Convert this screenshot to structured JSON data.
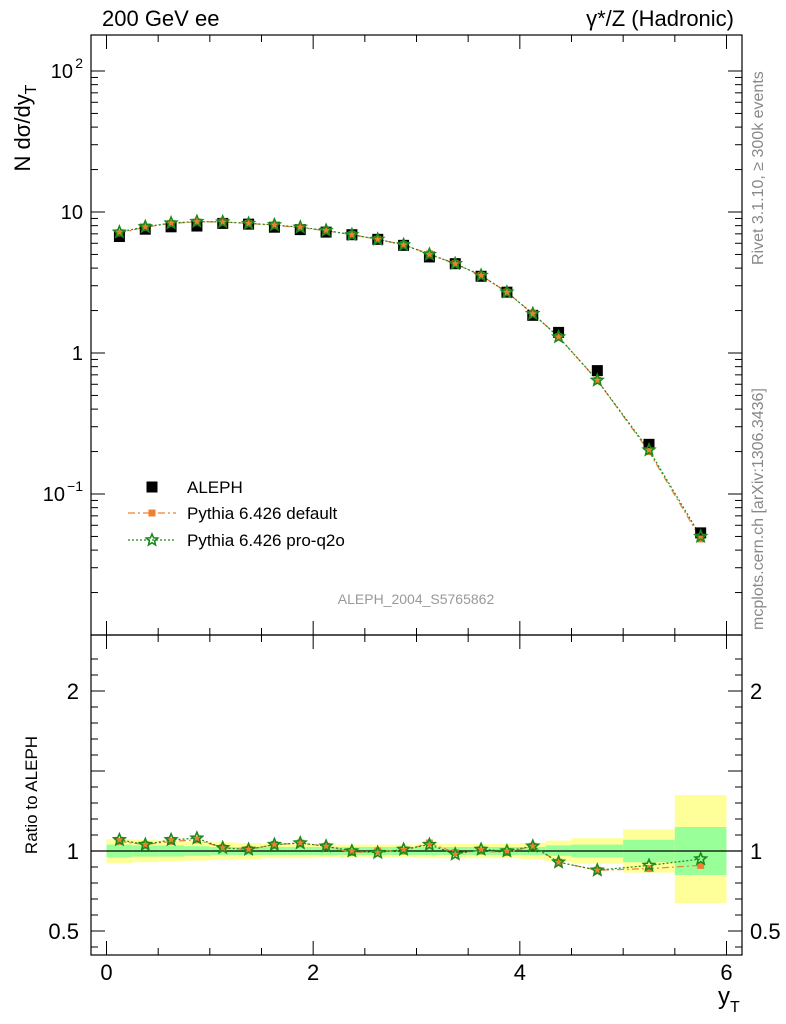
{
  "header": {
    "left": "200 GeV ee",
    "right": "γ*/Z (Hadronic)"
  },
  "side_labels": {
    "rivet": "Rivet 3.1.10, ≥ 300k events",
    "mcplots": "mcplots.cern.ch [arXiv:1306.3436]"
  },
  "chart_data": [
    {
      "type": "scatter",
      "panel": "main",
      "ylabel": "N dσ/dy_T",
      "yscale": "log",
      "ylim": [
        0.01,
        180
      ],
      "xlim": [
        -0.15,
        6.15
      ],
      "analysis_id": "ALEPH_2004_S5765862",
      "yticks": [
        {
          "value": 0.1,
          "label": "10",
          "exp": "−1"
        },
        {
          "value": 1,
          "label": "1",
          "exp": ""
        },
        {
          "value": 10,
          "label": "10",
          "exp": ""
        },
        {
          "value": 100,
          "label": "10",
          "exp": "2"
        }
      ],
      "x": [
        0.125,
        0.375,
        0.625,
        0.875,
        1.125,
        1.375,
        1.625,
        1.875,
        2.125,
        2.375,
        2.625,
        2.875,
        3.125,
        3.375,
        3.625,
        3.875,
        4.125,
        4.375,
        4.75,
        5.25,
        5.75
      ],
      "series": [
        {
          "name": "ALEPH",
          "marker": "square",
          "color": "#000000",
          "values": [
            6.7,
            7.55,
            7.85,
            7.95,
            8.3,
            8.2,
            7.8,
            7.5,
            7.2,
            6.9,
            6.4,
            5.8,
            4.8,
            4.3,
            3.5,
            2.7,
            1.85,
            1.4,
            0.75,
            0.225,
            0.053
          ]
        },
        {
          "name": "Pythia 6.426 default",
          "marker": "filled-square",
          "color": "#f08030",
          "values": [
            7.1,
            7.8,
            8.3,
            8.5,
            8.5,
            8.3,
            8.05,
            7.75,
            7.35,
            6.9,
            6.4,
            5.85,
            5.05,
            4.3,
            3.55,
            2.7,
            1.9,
            1.3,
            0.64,
            0.2,
            0.048
          ]
        },
        {
          "name": "Pythia 6.426 pro-q2o",
          "marker": "star",
          "color": "#1a8a1a",
          "values": [
            7.2,
            7.85,
            8.35,
            8.55,
            8.5,
            8.3,
            8.1,
            7.8,
            7.4,
            6.9,
            6.4,
            5.85,
            5.0,
            4.3,
            3.55,
            2.7,
            1.9,
            1.3,
            0.64,
            0.205,
            0.05
          ]
        }
      ]
    },
    {
      "type": "scatter",
      "panel": "ratio",
      "ylabel": "Ratio to ALEPH",
      "xlabel": "y_T",
      "ylim": [
        0.35,
        2.35
      ],
      "xlim": [
        -0.15,
        6.15
      ],
      "xticks": [
        0,
        2,
        4,
        6
      ],
      "yticks": [
        0.5,
        1,
        2
      ],
      "bins": [
        [
          0,
          0.25
        ],
        [
          0.25,
          0.5
        ],
        [
          0.5,
          0.75
        ],
        [
          0.75,
          1.0
        ],
        [
          1.0,
          1.25
        ],
        [
          1.25,
          1.5
        ],
        [
          1.5,
          1.75
        ],
        [
          1.75,
          2.0
        ],
        [
          2.0,
          2.25
        ],
        [
          2.25,
          2.5
        ],
        [
          2.5,
          2.75
        ],
        [
          2.75,
          3.0
        ],
        [
          3.0,
          3.25
        ],
        [
          3.25,
          3.5
        ],
        [
          3.5,
          3.75
        ],
        [
          3.75,
          4.0
        ],
        [
          4.0,
          4.25
        ],
        [
          4.25,
          4.5
        ],
        [
          4.5,
          5.0
        ],
        [
          5.0,
          5.5
        ],
        [
          5.5,
          6.0
        ]
      ],
      "band_inner": [
        [
          0.96,
          1.04
        ],
        [
          0.965,
          1.035
        ],
        [
          0.965,
          1.035
        ],
        [
          0.97,
          1.03
        ],
        [
          0.975,
          1.025
        ],
        [
          0.975,
          1.025
        ],
        [
          0.975,
          1.025
        ],
        [
          0.975,
          1.025
        ],
        [
          0.975,
          1.025
        ],
        [
          0.975,
          1.025
        ],
        [
          0.975,
          1.025
        ],
        [
          0.975,
          1.025
        ],
        [
          0.975,
          1.025
        ],
        [
          0.975,
          1.025
        ],
        [
          0.975,
          1.025
        ],
        [
          0.975,
          1.025
        ],
        [
          0.975,
          1.025
        ],
        [
          0.97,
          1.035
        ],
        [
          0.96,
          1.04
        ],
        [
          0.93,
          1.07
        ],
        [
          0.85,
          1.15
        ]
      ],
      "band_outer": [
        [
          0.925,
          1.075
        ],
        [
          0.93,
          1.07
        ],
        [
          0.935,
          1.065
        ],
        [
          0.94,
          1.06
        ],
        [
          0.945,
          1.055
        ],
        [
          0.95,
          1.05
        ],
        [
          0.955,
          1.045
        ],
        [
          0.955,
          1.045
        ],
        [
          0.96,
          1.04
        ],
        [
          0.96,
          1.04
        ],
        [
          0.96,
          1.04
        ],
        [
          0.96,
          1.04
        ],
        [
          0.955,
          1.045
        ],
        [
          0.955,
          1.045
        ],
        [
          0.955,
          1.045
        ],
        [
          0.955,
          1.045
        ],
        [
          0.95,
          1.05
        ],
        [
          0.935,
          1.065
        ],
        [
          0.92,
          1.08
        ],
        [
          0.865,
          1.135
        ],
        [
          0.675,
          1.35
        ]
      ],
      "x": [
        0.125,
        0.375,
        0.625,
        0.875,
        1.125,
        1.375,
        1.625,
        1.875,
        2.125,
        2.375,
        2.625,
        2.875,
        3.125,
        3.375,
        3.625,
        3.875,
        4.125,
        4.375,
        4.75,
        5.25,
        5.75
      ],
      "series": [
        {
          "name": "Pythia 6.426 default",
          "marker": "filled-square",
          "color": "#f08030",
          "values": [
            1.06,
            1.04,
            1.06,
            1.07,
            1.02,
            1.01,
            1.04,
            1.05,
            1.03,
            0.99,
            1.0,
            1.0,
            1.05,
            0.99,
            1.0,
            0.99,
            1.03,
            0.93,
            0.88,
            0.89,
            0.91
          ]
        },
        {
          "name": "Pythia 6.426 pro-q2o",
          "marker": "star",
          "color": "#1a8a1a",
          "values": [
            1.07,
            1.04,
            1.07,
            1.08,
            1.02,
            1.01,
            1.04,
            1.05,
            1.03,
            1.0,
            0.99,
            1.01,
            1.04,
            0.98,
            1.01,
            1.0,
            1.03,
            0.93,
            0.88,
            0.91,
            0.95
          ]
        }
      ]
    }
  ]
}
